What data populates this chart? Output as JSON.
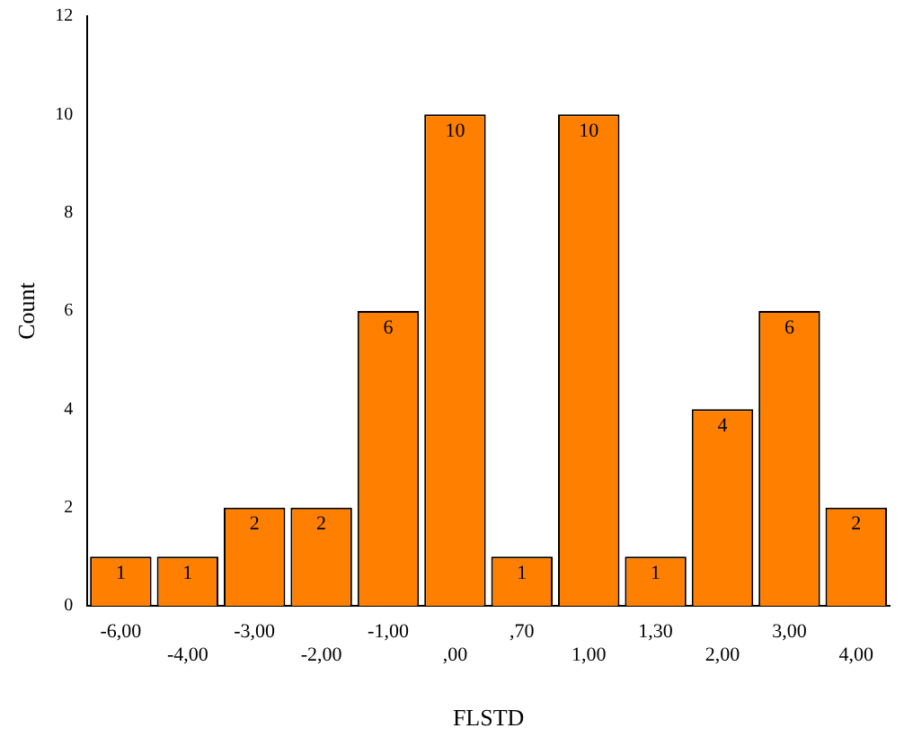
{
  "chart_data": {
    "type": "bar",
    "xlabel": "FLSTD",
    "ylabel": "Count",
    "categories": [
      "-6,00",
      "-4,00",
      "-3,00",
      "-2,00",
      "-1,00",
      ",00",
      ",70",
      "1,00",
      "1,30",
      "2,00",
      "3,00",
      "4,00"
    ],
    "values": [
      1,
      1,
      2,
      2,
      6,
      10,
      1,
      10,
      1,
      4,
      6,
      2
    ],
    "color": "#ff8000",
    "ylim": [
      0,
      12
    ],
    "yticks": [
      0,
      2,
      4,
      6,
      8,
      10,
      12
    ],
    "grid": false,
    "legend": false,
    "data_labels": true
  }
}
